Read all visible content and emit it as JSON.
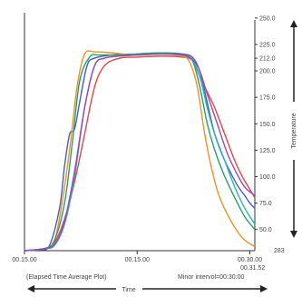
{
  "chart_data": {
    "type": "line",
    "title": "",
    "xlabel": "Time",
    "ylabel": "Temperature",
    "caption_left": "(Elapsed Time Average Plot)",
    "caption_right": "Minor intervol=00:30:00",
    "x_ticks": [
      {
        "label": "00.15.00",
        "value": 0
      },
      {
        "label": "00.15.00",
        "value": 45
      },
      {
        "label": "00.30.00",
        "value": 90
      }
    ],
    "x_end_label": "00.31.52",
    "xlim": [
      0,
      92
    ],
    "ylim": [
      30,
      255
    ],
    "y_bottom_label": "283",
    "y_ticks": [
      {
        "label": "250.0",
        "value": 250
      },
      {
        "label": "225.0",
        "value": 225
      },
      {
        "label": "212.0",
        "value": 212
      },
      {
        "label": "200.0",
        "value": 200
      },
      {
        "label": "175.0",
        "value": 175
      },
      {
        "label": "150.0",
        "value": 150
      },
      {
        "label": "125.0",
        "value": 125
      },
      {
        "label": "100.0",
        "value": 100
      },
      {
        "label": "75.0",
        "value": 75
      },
      {
        "label": "50.0",
        "value": 50
      }
    ],
    "grid": false,
    "series": [
      {
        "color": "#4a5fb0",
        "x": [
          0,
          6,
          10,
          14,
          16,
          18,
          20,
          22,
          25,
          28,
          35,
          45,
          55,
          63,
          67,
          70,
          73,
          76,
          80,
          85,
          88,
          90,
          92
        ],
        "y": [
          30,
          31,
          35,
          70,
          110,
          140,
          145,
          170,
          205,
          212,
          215,
          216,
          217,
          216,
          213,
          200,
          170,
          140,
          115,
          92,
          82,
          75,
          70
        ]
      },
      {
        "color": "#e04848",
        "x": [
          0,
          8,
          12,
          16,
          20,
          24,
          28,
          32,
          38,
          45,
          55,
          63,
          67,
          70,
          73,
          76,
          80,
          84,
          87,
          90,
          92
        ],
        "y": [
          30,
          32,
          38,
          60,
          95,
          140,
          185,
          205,
          212,
          213,
          214,
          213,
          210,
          195,
          180,
          165,
          140,
          115,
          100,
          88,
          80
        ]
      },
      {
        "color": "#e8942a",
        "x": [
          0,
          8,
          12,
          15,
          18,
          21,
          24,
          28,
          35,
          45,
          55,
          63,
          66,
          69,
          72,
          75,
          78,
          82,
          86,
          89,
          92
        ],
        "y": [
          30,
          32,
          40,
          75,
          125,
          185,
          216,
          218,
          217,
          215,
          216,
          214,
          208,
          185,
          140,
          105,
          80,
          60,
          45,
          38,
          34
        ]
      },
      {
        "color": "#2a9d6a",
        "x": [
          0,
          8,
          12,
          16,
          19,
          22,
          26,
          30,
          38,
          45,
          55,
          63,
          67,
          70,
          73,
          76,
          80,
          84,
          88,
          92
        ],
        "y": [
          30,
          32,
          40,
          75,
          130,
          190,
          213,
          215,
          215,
          216,
          217,
          215,
          210,
          185,
          150,
          125,
          100,
          80,
          62,
          50
        ]
      },
      {
        "color": "#28b0c0",
        "x": [
          0,
          8,
          12,
          16,
          20,
          24,
          28,
          32,
          38,
          45,
          55,
          63,
          67,
          70,
          73,
          76,
          80,
          84,
          88,
          92
        ],
        "y": [
          30,
          32,
          35,
          55,
          100,
          165,
          205,
          212,
          214,
          215,
          216,
          215,
          210,
          195,
          165,
          140,
          115,
          90,
          70,
          55
        ]
      },
      {
        "color": "#9b4ab0",
        "x": [
          0,
          8,
          12,
          16,
          20,
          24,
          28,
          32,
          38,
          45,
          55,
          63,
          67,
          70,
          73,
          77,
          81,
          85,
          88,
          92
        ],
        "y": [
          30,
          32,
          36,
          58,
          105,
          165,
          205,
          212,
          214,
          215,
          216,
          215,
          211,
          200,
          178,
          150,
          122,
          102,
          90,
          82
        ]
      }
    ]
  }
}
